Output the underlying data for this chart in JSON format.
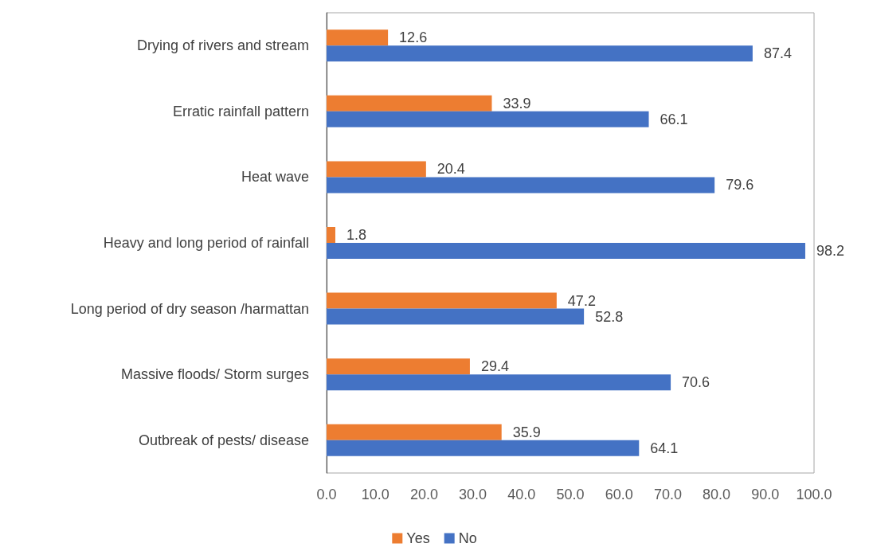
{
  "chart_data": {
    "type": "bar",
    "orientation": "horizontal",
    "categories": [
      "Drying of rivers and stream",
      "Erratic rainfall pattern",
      "Heat wave",
      "Heavy and long period of rainfall",
      "Long period of dry season /harmattan",
      "Massive floods/ Storm surges",
      "Outbreak of pests/ disease"
    ],
    "series": [
      {
        "name": "Yes",
        "color": "#ed7d31",
        "values": [
          12.6,
          33.9,
          20.4,
          1.8,
          47.2,
          29.4,
          35.9
        ]
      },
      {
        "name": "No",
        "color": "#4472c4",
        "values": [
          87.4,
          66.1,
          79.6,
          98.2,
          52.8,
          70.6,
          64.1
        ]
      }
    ],
    "xlim": [
      0,
      100
    ],
    "xticks": [
      {
        "value": 0,
        "label": "0.0"
      },
      {
        "value": 10,
        "label": "10.0"
      },
      {
        "value": 20,
        "label": "20.0"
      },
      {
        "value": 30,
        "label": "30.0"
      },
      {
        "value": 40,
        "label": "40.0"
      },
      {
        "value": 50,
        "label": "50.0"
      },
      {
        "value": 60,
        "label": "60.0"
      },
      {
        "value": 70,
        "label": "70.0"
      },
      {
        "value": 80,
        "label": "80.0"
      },
      {
        "value": 90,
        "label": "90.0"
      },
      {
        "value": 100,
        "label": "100.0"
      }
    ],
    "grid": false,
    "legend": "bottom",
    "data_labels": true
  }
}
